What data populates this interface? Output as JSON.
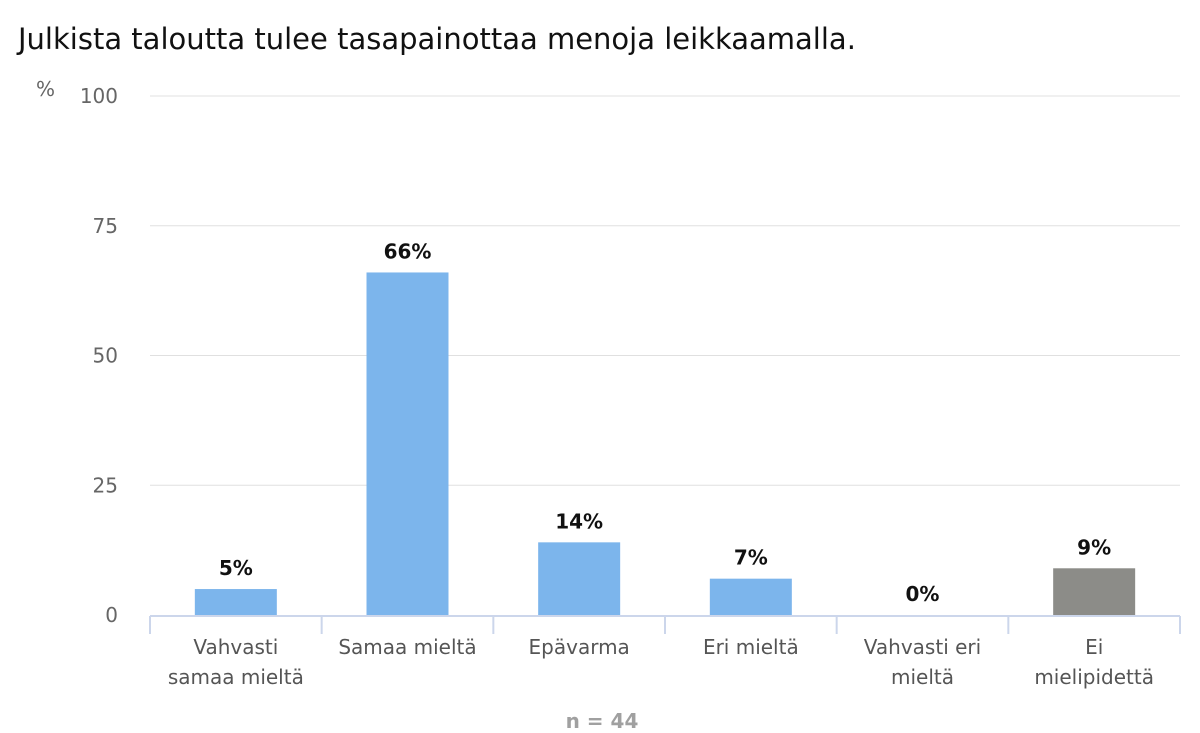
{
  "chart_data": {
    "type": "bar",
    "title": "Julkista taloutta tulee tasapainottaa menoja leikkaamalla.",
    "ylabel": "%",
    "ylim": [
      0,
      100
    ],
    "yticks": [
      0,
      25,
      50,
      75,
      100
    ],
    "grid": true,
    "categories": [
      "Vahvasti samaa mieltä",
      "Samaa mieltä",
      "Epävarma",
      "Eri mieltä",
      "Vahvasti eri mieltä",
      "Ei mielipidettä"
    ],
    "values": [
      5,
      66,
      14,
      7,
      0,
      9
    ],
    "data_labels": [
      "5%",
      "66%",
      "14%",
      "7%",
      "0%",
      "9%"
    ],
    "colors": [
      "#7cb5ec",
      "#7cb5ec",
      "#7cb5ec",
      "#7cb5ec",
      "#7cb5ec",
      "#8c8c88"
    ],
    "note": "n = 44"
  }
}
